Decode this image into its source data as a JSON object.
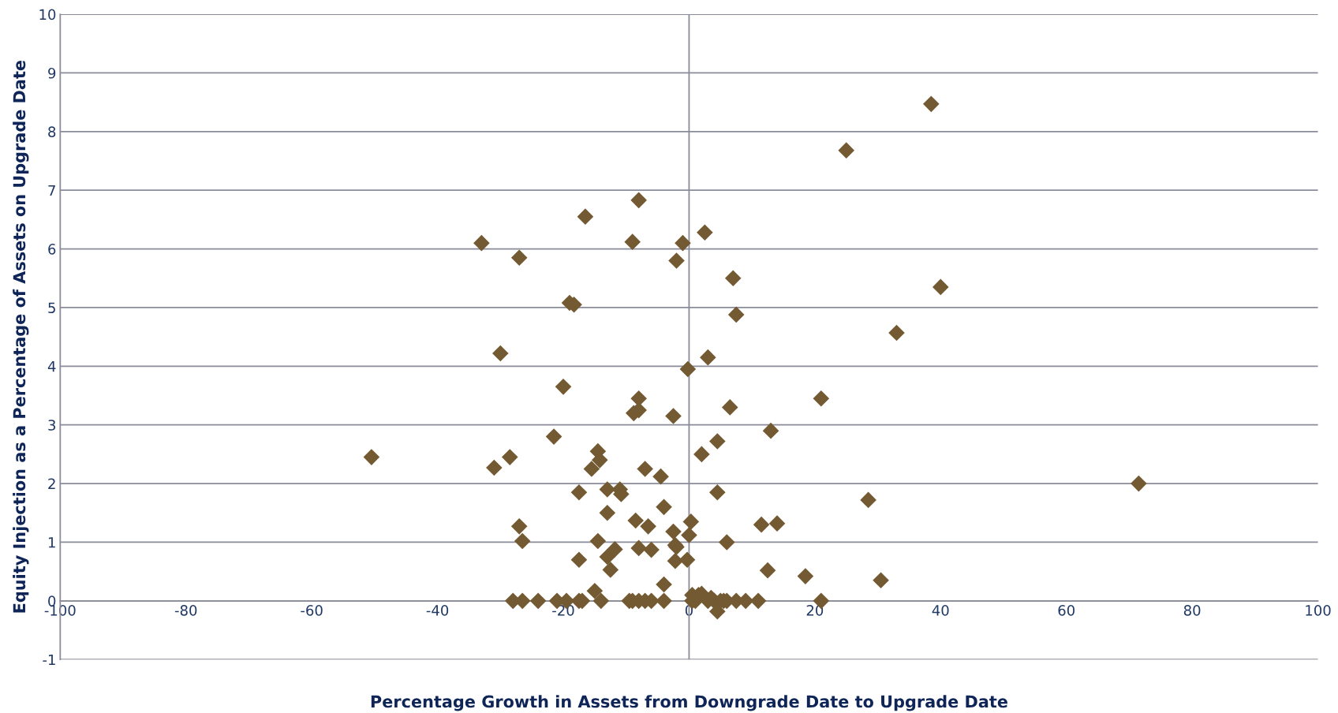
{
  "chart_data": {
    "type": "scatter",
    "xlabel": "Percentage Growth in Assets from Downgrade Date to Upgrade Date",
    "ylabel": "Equity Injection as a Percentage of Assets on Upgrade Date",
    "xlim": [
      -100,
      100
    ],
    "xticks": [
      -100,
      -80,
      -60,
      -40,
      -20,
      0,
      20,
      40,
      60,
      80,
      100
    ],
    "ylim": [
      -1,
      10
    ],
    "yticks": [
      -1,
      0,
      1,
      2,
      3,
      4,
      5,
      6,
      7,
      8,
      9,
      10
    ],
    "grid": "y",
    "marker": "diamond",
    "ref_lines": [
      {
        "axis": "x",
        "value": 0,
        "color": "#8a8c99"
      }
    ],
    "series": [
      {
        "color": "#735a32",
        "x": [
          -50.5,
          -33,
          -31,
          -30,
          -28.5,
          -27,
          -26.5,
          -27,
          -26.5,
          -28,
          -24,
          -21.5,
          -20,
          -19,
          -18.3,
          -17.5,
          -17.5,
          -16.5,
          -21,
          -19.5,
          -17.5,
          -17,
          -15.5,
          -15,
          -14.5,
          -14.2,
          -14.5,
          -14,
          -13,
          -13,
          -13,
          -12.5,
          -11.8,
          -11,
          -10.8,
          -9.5,
          -9,
          -9,
          -8.8,
          -8.5,
          -8,
          -8,
          -8,
          -8,
          -8,
          -7,
          -7,
          -6.5,
          -6,
          -6,
          -4.5,
          -4,
          -4,
          -4,
          -2.5,
          -2.5,
          -2.2,
          -2,
          -2,
          -2.2,
          -1,
          -0.2,
          -0.3,
          0,
          0.3,
          0.5,
          0.5,
          1,
          1.5,
          2,
          2,
          2.5,
          3,
          3,
          3.5,
          4,
          4.5,
          4.5,
          4.5,
          5,
          5.5,
          6,
          6,
          6.5,
          7,
          7.5,
          7.5,
          9,
          11,
          11.5,
          12.5,
          13,
          14,
          18.5,
          21,
          21,
          25,
          28.5,
          30.5,
          33,
          38.5,
          40,
          71.5
        ],
        "values": [
          2.45,
          6.1,
          2.27,
          4.22,
          2.45,
          1.27,
          1.02,
          5.85,
          0,
          0,
          0,
          2.8,
          3.65,
          5.08,
          5.05,
          1.85,
          0.7,
          6.55,
          0,
          0,
          0,
          0,
          2.25,
          0.17,
          2.55,
          2.4,
          1.02,
          0,
          1.9,
          1.5,
          0.75,
          0.53,
          0.88,
          1.9,
          1.82,
          0,
          0,
          6.12,
          3.2,
          1.37,
          3.45,
          3.25,
          0.9,
          6.83,
          0,
          0,
          2.25,
          1.27,
          0.87,
          0,
          2.12,
          1.6,
          0.28,
          0,
          3.15,
          1.18,
          0.95,
          0.92,
          5.8,
          0.68,
          6.1,
          3.95,
          0.7,
          1.12,
          1.35,
          0,
          0.1,
          0,
          0.1,
          0.12,
          2.5,
          6.28,
          0,
          4.15,
          0.05,
          0,
          -0.18,
          1.85,
          2.72,
          0,
          0,
          1.0,
          0,
          3.3,
          5.5,
          4.88,
          0,
          0,
          0,
          1.3,
          0.52,
          2.9,
          1.32,
          0.42,
          3.45,
          0,
          7.68,
          1.72,
          0.35,
          4.57,
          8.47,
          5.35,
          2.0
        ]
      }
    ]
  }
}
